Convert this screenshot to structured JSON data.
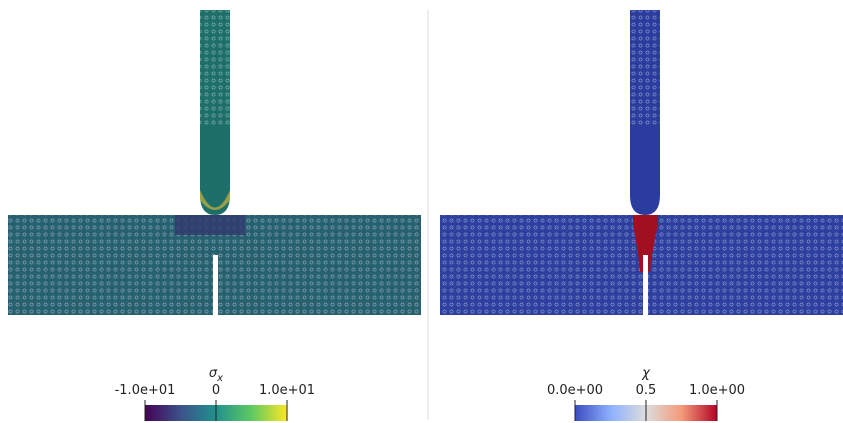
{
  "panels": [
    {
      "colorbar": {
        "symbol": "σ",
        "subscript": "x",
        "range": [
          -10,
          10
        ],
        "ticks": [
          {
            "value": -10,
            "label": "-1.0e+01"
          },
          0,
          {
            "value": 10,
            "label": "1.0e+01"
          }
        ],
        "colormap": [
          "#440154",
          "#3b528b",
          "#21918c",
          "#5ec962",
          "#fde725"
        ]
      }
    },
    {
      "colorbar": {
        "symbol": "χ",
        "range": [
          0,
          1
        ],
        "ticks": [
          {
            "value": 0,
            "label": "0.0e+00"
          },
          0.5,
          {
            "value": 1,
            "label": "1.0e+00"
          }
        ],
        "colormap": [
          "#3b4cc0",
          "#8db0fe",
          "#dddddd",
          "#f49a7b",
          "#b40426"
        ]
      }
    }
  ]
}
